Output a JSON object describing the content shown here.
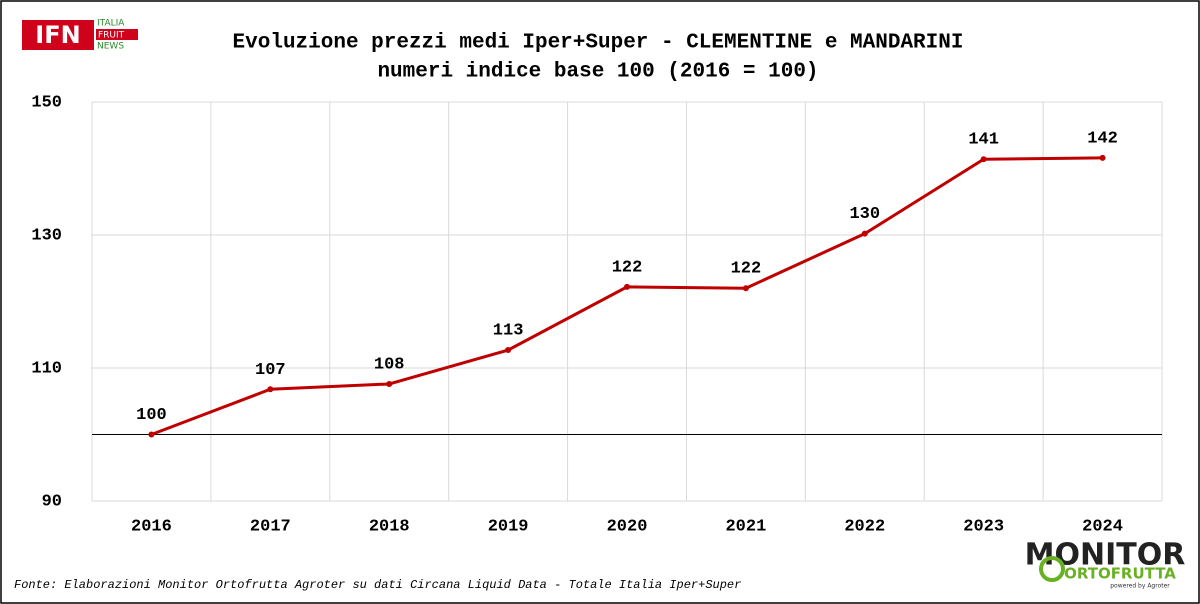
{
  "logo": {
    "text": "IFN",
    "lines": [
      "ITALIA",
      "FRUIT",
      "NEWS"
    ]
  },
  "chart_data": {
    "type": "line",
    "title": "Evoluzione prezzi medi Iper+Super - CLEMENTINE e MANDARINI",
    "subtitle": "numeri indice base 100 (2016 = 100)",
    "categories": [
      "2016",
      "2017",
      "2018",
      "2019",
      "2020",
      "2021",
      "2022",
      "2023",
      "2024"
    ],
    "values": [
      100,
      106.8,
      107.6,
      112.7,
      122.2,
      122.0,
      130.2,
      141.4,
      141.6
    ],
    "value_labels": [
      "100",
      "107",
      "108",
      "113",
      "122",
      "122",
      "130",
      "141",
      "142"
    ],
    "color": "#c00000",
    "ylim": [
      90,
      150
    ],
    "yticks": [
      90,
      110,
      130,
      150
    ],
    "reference_line": 100,
    "grid": true
  },
  "source": "Fonte: Elaborazioni Monitor Ortofrutta Agroter su dati Circana Liquid Data - Totale Italia Iper+Super",
  "brand": {
    "name": "MONITOR",
    "sub": "ORTOFRUTTA",
    "powered": "powered by Agroter"
  }
}
